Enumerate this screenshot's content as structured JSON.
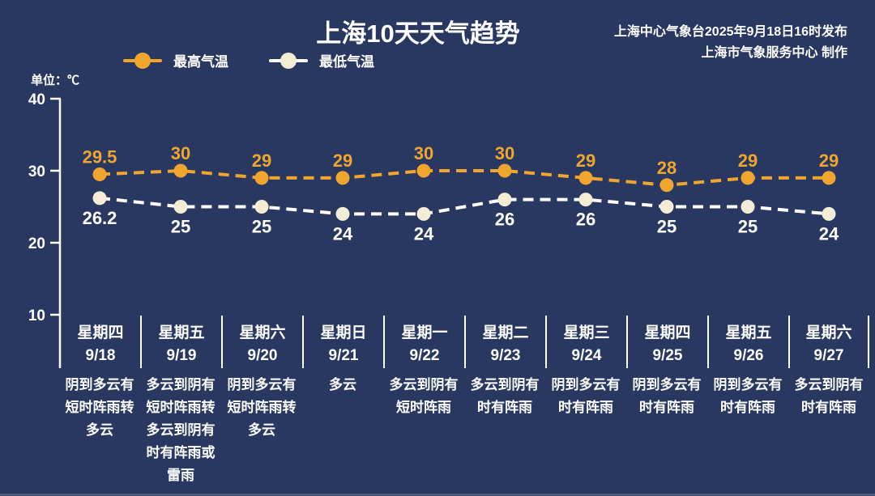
{
  "page": {
    "title": "上海10天天气趋势",
    "publisher_line1": "上海中心气象台2025年9月18日16时发布",
    "publisher_line2": "上海市气象服务中心 制作",
    "unit_label": "单位：℃"
  },
  "colors": {
    "background": "#283861",
    "max_temp_orange": "#f0a52f",
    "min_temp_line": "#ffffff",
    "min_temp_marker": "#f5ecd5",
    "text": "#ffffff",
    "axis": "#ffffff"
  },
  "chart_data": {
    "type": "line",
    "title": "上海10天天气趋势",
    "unit": "℃",
    "ylim": [
      10,
      40
    ],
    "yticks": [
      "40",
      "30",
      "20",
      "10"
    ],
    "grid": false,
    "line_style": "dashed",
    "legend_position": "top-left",
    "categories": [
      {
        "weekday": "星期四",
        "date": "9/18",
        "weather": "阴到多云有短时阵雨转多云"
      },
      {
        "weekday": "星期五",
        "date": "9/19",
        "weather": "多云到阴有短时阵雨转多云到阴有时有阵雨或雷雨"
      },
      {
        "weekday": "星期六",
        "date": "9/20",
        "weather": "阴到多云有短时阵雨转多云"
      },
      {
        "weekday": "星期日",
        "date": "9/21",
        "weather": "多云"
      },
      {
        "weekday": "星期一",
        "date": "9/22",
        "weather": "多云到阴有短时阵雨"
      },
      {
        "weekday": "星期二",
        "date": "9/23",
        "weather": "多云到阴有时有阵雨"
      },
      {
        "weekday": "星期三",
        "date": "9/24",
        "weather": "阴到多云有时有阵雨"
      },
      {
        "weekday": "星期四",
        "date": "9/25",
        "weather": "阴到多云有时有阵雨"
      },
      {
        "weekday": "星期五",
        "date": "9/26",
        "weather": "阴到多云有时有阵雨"
      },
      {
        "weekday": "星期六",
        "date": "9/27",
        "weather": "多云到阴有时有阵雨"
      }
    ],
    "series": [
      {
        "name": "最高气温",
        "values": [
          29.5,
          30,
          29,
          29,
          30,
          30,
          29,
          28,
          29,
          29
        ],
        "labels": [
          "29.5",
          "30",
          "29",
          "29",
          "30",
          "30",
          "29",
          "28",
          "29",
          "29"
        ],
        "line_color": "#f0a52f",
        "marker_color": "#f0a52f",
        "label_color": "#f0a52f",
        "label_position": "above"
      },
      {
        "name": "最低气温",
        "values": [
          26.2,
          25,
          25,
          24,
          24,
          26,
          26,
          25,
          25,
          24
        ],
        "labels": [
          "26.2",
          "25",
          "25",
          "24",
          "24",
          "26",
          "26",
          "25",
          "25",
          "24"
        ],
        "line_color": "#ffffff",
        "marker_color": "#f5ecd5",
        "label_color": "#ffffff",
        "label_position": "below"
      }
    ]
  }
}
